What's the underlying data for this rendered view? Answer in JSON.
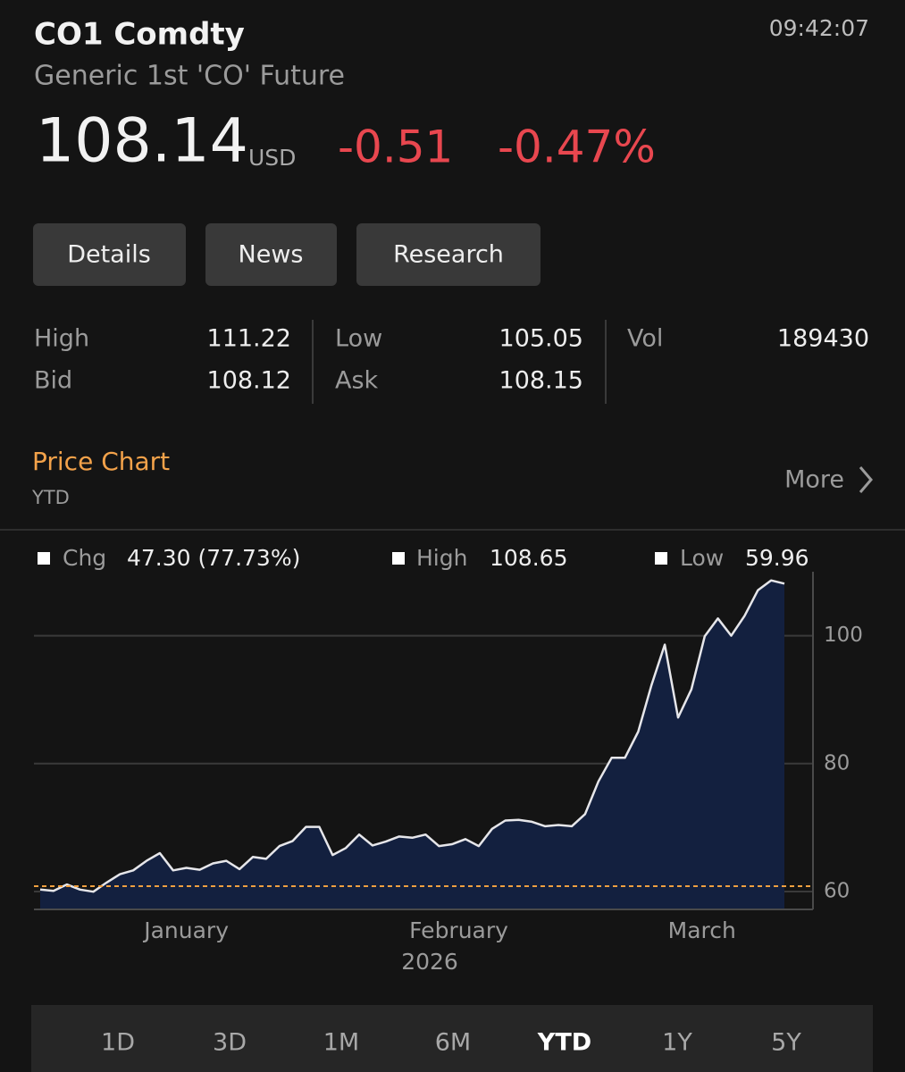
{
  "header": {
    "ticker": "CO1 Comdty",
    "name": "Generic 1st 'CO' Future",
    "time": "09:42:07"
  },
  "quote": {
    "price": "108.14",
    "currency": "USD",
    "change": "-0.51",
    "change_pct": "-0.47%"
  },
  "tabs": [
    "Details",
    "News",
    "Research"
  ],
  "stats": [
    {
      "label": "High",
      "value": "111.22"
    },
    {
      "label": "Low",
      "value": "105.05"
    },
    {
      "label": "Vol",
      "value": "189430"
    },
    {
      "label": "Bid",
      "value": "108.12"
    },
    {
      "label": "Ask",
      "value": "108.15"
    }
  ],
  "chart_section": {
    "title": "Price Chart",
    "period": "YTD",
    "more": "More"
  },
  "chart_data": {
    "type": "area",
    "summary": [
      {
        "label": "Chg",
        "value": "47.30 (77.73%)"
      },
      {
        "label": "High",
        "value": "108.65"
      },
      {
        "label": "Low",
        "value": "59.96"
      }
    ],
    "values": [
      60.3,
      60.1,
      61.1,
      60.3,
      59.96,
      61.4,
      62.7,
      63.3,
      64.8,
      66.0,
      63.3,
      63.7,
      63.4,
      64.4,
      64.8,
      63.5,
      65.4,
      65.1,
      67.1,
      67.9,
      70.1,
      70.1,
      65.7,
      66.8,
      68.9,
      67.2,
      67.8,
      68.6,
      68.4,
      68.9,
      67.1,
      67.4,
      68.2,
      67.1,
      69.8,
      71.1,
      71.2,
      70.9,
      70.2,
      70.4,
      70.2,
      72.1,
      77.2,
      80.9,
      80.9,
      85.0,
      92.3,
      98.6,
      87.2,
      91.6,
      99.9,
      102.7,
      100.0,
      103.1,
      107.1,
      108.65,
      108.14
    ],
    "color": "#e6e6ea",
    "fill": "#13203f",
    "xlim": [
      0,
      56
    ],
    "xticks": [
      {
        "value": 11,
        "label": "January"
      },
      {
        "value": 31.5,
        "label": "February"
      },
      {
        "value": 49.8,
        "label": "March"
      }
    ],
    "xlabel": "2026",
    "ylim": [
      57.2,
      110
    ],
    "yticks": [
      60,
      80,
      100
    ],
    "grid": true,
    "reference_line": {
      "value": 60.84,
      "color": "#f0a040"
    }
  },
  "ranges": {
    "items": [
      "1D",
      "3D",
      "1M",
      "6M",
      "YTD",
      "1Y",
      "5Y"
    ],
    "selected": 4
  }
}
